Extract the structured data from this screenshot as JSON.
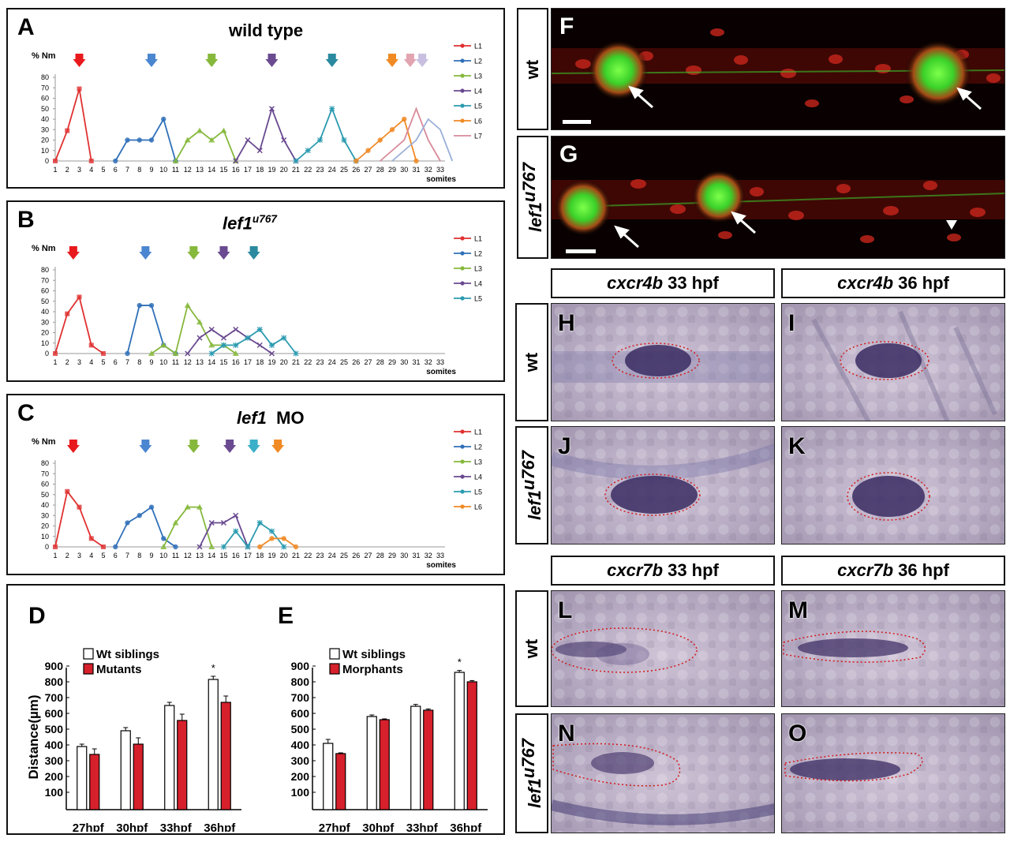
{
  "panels": {
    "A": {
      "letter": "A",
      "title": "wild type"
    },
    "B": {
      "letter": "B",
      "title_main": "lef1",
      "title_sup": "u767"
    },
    "C": {
      "letter": "C",
      "title_main": "lef1",
      "title_rest": "MO"
    },
    "D": {
      "letter": "D"
    },
    "E": {
      "letter": "E"
    },
    "F": {
      "letter": "F",
      "row_label": "wt"
    },
    "G": {
      "letter": "G",
      "row_label_main": "lef1",
      "row_label_sup": "u767"
    },
    "H": {
      "letter": "H"
    },
    "I": {
      "letter": "I"
    },
    "J": {
      "letter": "J"
    },
    "K": {
      "letter": "K"
    },
    "L": {
      "letter": "L"
    },
    "M": {
      "letter": "M"
    },
    "N": {
      "letter": "N"
    },
    "O": {
      "letter": "O"
    }
  },
  "ish_labels": {
    "cxcr4b_33": {
      "gene": "cxcr4b",
      "time": "33 hpf"
    },
    "cxcr4b_36": {
      "gene": "cxcr4b",
      "time": "36 hpf"
    },
    "cxcr7b_33": {
      "gene": "cxcr7b",
      "time": "33 hpf"
    },
    "cxcr7b_36": {
      "gene": "cxcr7b",
      "time": "36 hpf"
    },
    "row_wt": "wt",
    "row_mut_main": "lef1",
    "row_mut_sup": "u767"
  },
  "chart_data": [
    {
      "type": "line",
      "panel": "A",
      "ylabel": "% Nm",
      "xlabel": "somites",
      "ylim": [
        0,
        80
      ],
      "yticks": [
        0,
        10,
        20,
        30,
        40,
        50,
        60,
        70,
        80
      ],
      "x": [
        1,
        2,
        3,
        4,
        5,
        6,
        7,
        8,
        9,
        10,
        11,
        12,
        13,
        14,
        15,
        16,
        17,
        18,
        19,
        20,
        21,
        22,
        23,
        24,
        25,
        26,
        27,
        28,
        29,
        30,
        31,
        32,
        33
      ],
      "series": [
        {
          "name": "L1",
          "color": "#e03131",
          "marker": "square",
          "points": [
            [
              1,
              0
            ],
            [
              2,
              29
            ],
            [
              3,
              69
            ],
            [
              4,
              0
            ]
          ]
        },
        {
          "name": "L2",
          "color": "#3070b8",
          "marker": "circle",
          "points": [
            [
              6,
              0
            ],
            [
              7,
              20
            ],
            [
              8,
              20
            ],
            [
              9,
              20
            ],
            [
              10,
              40
            ],
            [
              11,
              0
            ]
          ]
        },
        {
          "name": "L3",
          "color": "#86b83c",
          "marker": "triangle",
          "points": [
            [
              11,
              0
            ],
            [
              12,
              20
            ],
            [
              13,
              29
            ],
            [
              14,
              20
            ],
            [
              15,
              29
            ],
            [
              16,
              0
            ]
          ]
        },
        {
          "name": "L4",
          "color": "#6a4a90",
          "marker": "x",
          "points": [
            [
              16,
              0
            ],
            [
              17,
              20
            ],
            [
              18,
              10
            ],
            [
              19,
              50
            ],
            [
              20,
              20
            ],
            [
              21,
              0
            ]
          ]
        },
        {
          "name": "L5",
          "color": "#2b9bb0",
          "marker": "star",
          "points": [
            [
              21,
              0
            ],
            [
              22,
              10
            ],
            [
              23,
              20
            ],
            [
              24,
              50
            ],
            [
              25,
              20
            ],
            [
              26,
              0
            ]
          ]
        },
        {
          "name": "L6",
          "color": "#f08a24",
          "marker": "circle",
          "points": [
            [
              26,
              0
            ],
            [
              27,
              10
            ],
            [
              28,
              20
            ],
            [
              29,
              30
            ],
            [
              30,
              40
            ],
            [
              31,
              0
            ]
          ]
        },
        {
          "name": "L7",
          "color": "#d88a9a",
          "marker": "none",
          "points": [
            [
              28,
              0
            ],
            [
              29,
              10
            ],
            [
              30,
              20
            ],
            [
              31,
              50
            ],
            [
              32,
              20
            ],
            [
              33,
              0
            ]
          ]
        },
        {
          "name": "",
          "color": "#9ab0d8",
          "marker": "none",
          "points": [
            [
              29,
              0
            ],
            [
              30,
              10
            ],
            [
              31,
              20
            ],
            [
              32,
              40
            ],
            [
              33,
              30
            ],
            [
              34,
              0
            ]
          ]
        }
      ],
      "arrows": [
        {
          "x": 3,
          "color": "#e8191c"
        },
        {
          "x": 9,
          "color": "#4b86d0"
        },
        {
          "x": 14,
          "color": "#86b83c"
        },
        {
          "x": 19,
          "color": "#6a4a90"
        },
        {
          "x": 24,
          "color": "#2b8aa0"
        },
        {
          "x": 29,
          "color": "#f08a24"
        },
        {
          "x": 30.5,
          "color": "#e2a4b0"
        },
        {
          "x": 31.5,
          "color": "#c9bfe0"
        }
      ]
    },
    {
      "type": "line",
      "panel": "B",
      "ylabel": "% Nm",
      "xlabel": "somites",
      "ylim": [
        0,
        80
      ],
      "yticks": [
        0,
        10,
        20,
        30,
        40,
        50,
        60,
        70,
        80
      ],
      "x": [
        1,
        2,
        3,
        4,
        5,
        6,
        7,
        8,
        9,
        10,
        11,
        12,
        13,
        14,
        15,
        16,
        17,
        18,
        19,
        20,
        21,
        22,
        23,
        24,
        25,
        26,
        27,
        28,
        29,
        30,
        31,
        32,
        33
      ],
      "series": [
        {
          "name": "L1",
          "color": "#e03131",
          "marker": "square",
          "points": [
            [
              1,
              0
            ],
            [
              2,
              38
            ],
            [
              3,
              54
            ],
            [
              4,
              8
            ],
            [
              5,
              0
            ]
          ]
        },
        {
          "name": "L2",
          "color": "#3070b8",
          "marker": "circle",
          "points": [
            [
              7,
              0
            ],
            [
              8,
              46
            ],
            [
              9,
              46
            ],
            [
              10,
              8
            ],
            [
              11,
              0
            ]
          ]
        },
        {
          "name": "L3",
          "color": "#86b83c",
          "marker": "triangle",
          "points": [
            [
              9,
              0
            ],
            [
              10,
              8
            ],
            [
              11,
              0
            ],
            [
              12,
              46
            ],
            [
              13,
              30
            ],
            [
              14,
              8
            ],
            [
              15,
              8
            ],
            [
              16,
              0
            ]
          ]
        },
        {
          "name": "L4",
          "color": "#6a4a90",
          "marker": "x",
          "points": [
            [
              12,
              0
            ],
            [
              13,
              15
            ],
            [
              14,
              23
            ],
            [
              15,
              15
            ],
            [
              16,
              23
            ],
            [
              17,
              15
            ],
            [
              18,
              8
            ],
            [
              19,
              0
            ]
          ]
        },
        {
          "name": "L5",
          "color": "#2b9bb0",
          "marker": "star",
          "points": [
            [
              14,
              0
            ],
            [
              15,
              8
            ],
            [
              16,
              8
            ],
            [
              17,
              15
            ],
            [
              18,
              23
            ],
            [
              19,
              8
            ],
            [
              20,
              15
            ],
            [
              21,
              0
            ]
          ]
        }
      ],
      "arrows": [
        {
          "x": 2.5,
          "color": "#e8191c"
        },
        {
          "x": 8.5,
          "color": "#4b86d0"
        },
        {
          "x": 12.5,
          "color": "#86b83c"
        },
        {
          "x": 15,
          "color": "#6a4a90"
        },
        {
          "x": 17.5,
          "color": "#2b8aa0"
        }
      ]
    },
    {
      "type": "line",
      "panel": "C",
      "ylabel": "% Nm",
      "xlabel": "somites",
      "ylim": [
        0,
        80
      ],
      "yticks": [
        0,
        10,
        20,
        30,
        40,
        50,
        60,
        70,
        80
      ],
      "x": [
        1,
        2,
        3,
        4,
        5,
        6,
        7,
        8,
        9,
        10,
        11,
        12,
        13,
        14,
        15,
        16,
        17,
        18,
        19,
        20,
        21,
        22,
        23,
        24,
        25,
        26,
        27,
        28,
        29,
        30,
        31,
        32,
        33
      ],
      "series": [
        {
          "name": "L1",
          "color": "#e03131",
          "marker": "square",
          "points": [
            [
              1,
              0
            ],
            [
              2,
              53
            ],
            [
              3,
              38
            ],
            [
              4,
              8
            ],
            [
              5,
              0
            ]
          ]
        },
        {
          "name": "L2",
          "color": "#3070b8",
          "marker": "circle",
          "points": [
            [
              6,
              0
            ],
            [
              7,
              23
            ],
            [
              8,
              30
            ],
            [
              9,
              38
            ],
            [
              10,
              8
            ],
            [
              11,
              0
            ]
          ]
        },
        {
          "name": "L3",
          "color": "#86b83c",
          "marker": "triangle",
          "points": [
            [
              10,
              0
            ],
            [
              11,
              23
            ],
            [
              12,
              38
            ],
            [
              13,
              38
            ],
            [
              14,
              0
            ]
          ]
        },
        {
          "name": "L4",
          "color": "#6a4a90",
          "marker": "x",
          "points": [
            [
              13,
              0
            ],
            [
              14,
              23
            ],
            [
              15,
              23
            ],
            [
              16,
              30
            ],
            [
              17,
              0
            ]
          ]
        },
        {
          "name": "L5",
          "color": "#2b9bb0",
          "marker": "star",
          "points": [
            [
              15,
              0
            ],
            [
              16,
              15
            ],
            [
              17,
              0
            ],
            [
              18,
              23
            ],
            [
              19,
              15
            ],
            [
              20,
              0
            ]
          ]
        },
        {
          "name": "L6",
          "color": "#f08a24",
          "marker": "circle",
          "points": [
            [
              18,
              0
            ],
            [
              19,
              8
            ],
            [
              20,
              8
            ],
            [
              21,
              0
            ]
          ]
        }
      ],
      "arrows": [
        {
          "x": 2.5,
          "color": "#e8191c"
        },
        {
          "x": 8.5,
          "color": "#4b86d0"
        },
        {
          "x": 12.5,
          "color": "#86b83c"
        },
        {
          "x": 15.5,
          "color": "#6a4a90"
        },
        {
          "x": 17.5,
          "color": "#3bb0c8"
        },
        {
          "x": 19.5,
          "color": "#f08a24"
        }
      ]
    },
    {
      "type": "bar",
      "panel": "D",
      "ylabel": "Distance(µm)",
      "ylim": [
        0,
        900
      ],
      "yticks": [
        100,
        200,
        300,
        400,
        500,
        600,
        700,
        800,
        900
      ],
      "categories": [
        "27hpf",
        "30hpf",
        "33hpf",
        "36hpf"
      ],
      "series": [
        {
          "name": "Wt siblings",
          "color": "#ffffff",
          "values": [
            390,
            490,
            650,
            815
          ],
          "errors": [
            15,
            20,
            20,
            20
          ]
        },
        {
          "name": "Mutants",
          "color": "#d6202b",
          "values": [
            340,
            405,
            555,
            670
          ],
          "errors": [
            35,
            40,
            40,
            40
          ]
        }
      ],
      "significance": [
        {
          "category": "36hpf",
          "mark": "*"
        }
      ]
    },
    {
      "type": "bar",
      "panel": "E",
      "ylabel": "",
      "ylim": [
        0,
        900
      ],
      "yticks": [
        100,
        200,
        300,
        400,
        500,
        600,
        700,
        800,
        900
      ],
      "categories": [
        "27hpf",
        "30hpf",
        "33hpf",
        "36hpf"
      ],
      "series": [
        {
          "name": "Wt siblings",
          "color": "#ffffff",
          "values": [
            410,
            580,
            645,
            860
          ],
          "errors": [
            25,
            10,
            12,
            12
          ]
        },
        {
          "name": "Morphants",
          "color": "#d6202b",
          "values": [
            345,
            560,
            620,
            800
          ],
          "errors": [
            5,
            5,
            8,
            8
          ]
        }
      ],
      "significance": [
        {
          "category": "36hpf",
          "mark": "*"
        }
      ]
    }
  ]
}
